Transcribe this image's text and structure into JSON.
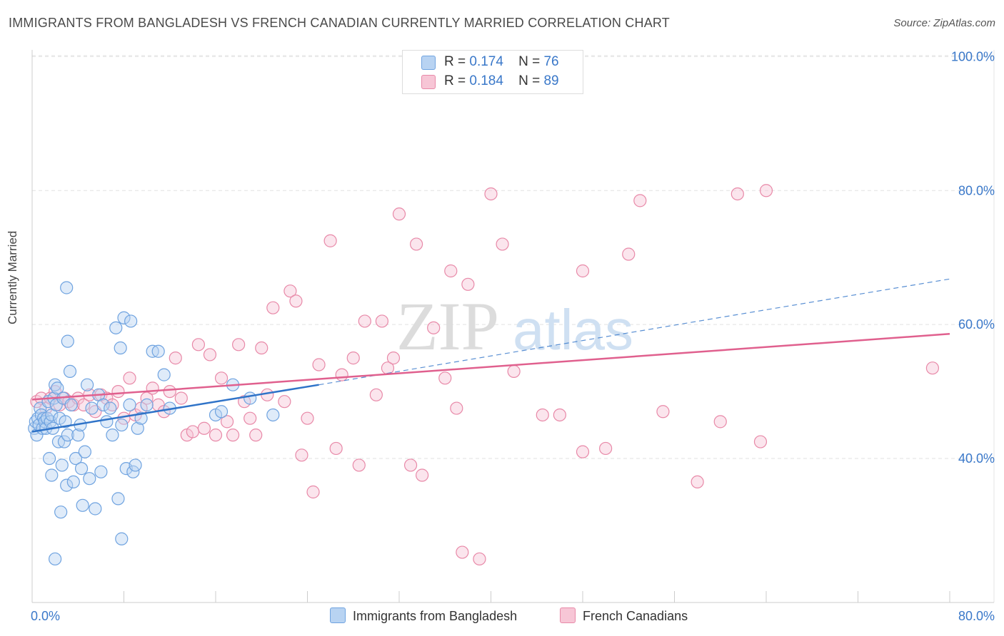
{
  "title": "IMMIGRANTS FROM BANGLADESH VS FRENCH CANADIAN CURRENTLY MARRIED CORRELATION CHART",
  "source_prefix": "Source: ",
  "source_site": "ZipAtlas.com",
  "watermark": {
    "zip": "ZIP",
    "atlas": "atlas"
  },
  "colors": {
    "blue": "#6fa3e0",
    "blue_fill": "#b8d3f2",
    "blue_line": "#2f73c8",
    "pink": "#e889a8",
    "pink_fill": "#f7c6d6",
    "pink_line": "#e0608e",
    "axis_text": "#3a78c9",
    "grid": "#e2e2e2"
  },
  "legend": {
    "r_label": "R =",
    "n_label": "N =",
    "series": [
      {
        "r": "0.174",
        "n": "76"
      },
      {
        "r": "0.184",
        "n": "89"
      }
    ]
  },
  "chart_data": {
    "type": "scatter",
    "title": "IMMIGRANTS FROM BANGLADESH VS FRENCH CANADIAN CURRENTLY MARRIED CORRELATION CHART",
    "xlabel": "",
    "ylabel": "Currently Married",
    "xlim": [
      0,
      80
    ],
    "ylim": [
      18.5,
      101
    ],
    "x_tick_labels": [
      "0.0%",
      "80.0%"
    ],
    "y_ticks": [
      40,
      60,
      80,
      100
    ],
    "y_tick_labels": [
      "40.0%",
      "60.0%",
      "80.0%",
      "100.0%"
    ],
    "legend_position": "top-center",
    "series": [
      {
        "name": "Immigrants from Bangladesh",
        "color": "blue",
        "trend": {
          "x0": 0,
          "y0": 44.0,
          "x1": 25,
          "y1": 51.0,
          "dashed_to_x": 80,
          "dashed_to_y": 66.8
        },
        "points": [
          [
            0.2,
            44.5
          ],
          [
            0.3,
            45.5
          ],
          [
            0.4,
            43.5
          ],
          [
            0.5,
            46.0
          ],
          [
            0.6,
            45.0
          ],
          [
            0.7,
            47.5
          ],
          [
            0.8,
            46.5
          ],
          [
            0.9,
            44.5
          ],
          [
            1.0,
            46.0
          ],
          [
            1.1,
            45.5
          ],
          [
            1.2,
            44.5
          ],
          [
            1.3,
            46.0
          ],
          [
            1.4,
            48.5
          ],
          [
            1.5,
            40.0
          ],
          [
            1.6,
            45.5
          ],
          [
            1.7,
            46.5
          ],
          [
            1.8,
            44.5
          ],
          [
            1.9,
            49.0
          ],
          [
            2.0,
            51.0
          ],
          [
            2.1,
            48.0
          ],
          [
            2.2,
            50.5
          ],
          [
            2.3,
            42.5
          ],
          [
            2.4,
            46.0
          ],
          [
            2.5,
            32.0
          ],
          [
            2.6,
            39.0
          ],
          [
            2.7,
            49.0
          ],
          [
            2.8,
            42.5
          ],
          [
            2.9,
            45.5
          ],
          [
            3.0,
            36.0
          ],
          [
            3.1,
            43.5
          ],
          [
            3.3,
            53.0
          ],
          [
            3.4,
            48.0
          ],
          [
            3.6,
            36.5
          ],
          [
            3.8,
            40.0
          ],
          [
            4.0,
            43.5
          ],
          [
            4.2,
            45.0
          ],
          [
            4.4,
            33.0
          ],
          [
            4.6,
            41.0
          ],
          [
            4.8,
            51.0
          ],
          [
            5.0,
            37.0
          ],
          [
            5.2,
            47.5
          ],
          [
            5.5,
            32.5
          ],
          [
            5.8,
            49.5
          ],
          [
            6.0,
            38.0
          ],
          [
            6.2,
            48.0
          ],
          [
            6.5,
            45.5
          ],
          [
            6.8,
            47.5
          ],
          [
            7.0,
            43.5
          ],
          [
            7.3,
            59.5
          ],
          [
            7.5,
            34.0
          ],
          [
            7.8,
            45.0
          ],
          [
            8.0,
            61.0
          ],
          [
            8.2,
            38.5
          ],
          [
            8.5,
            48.0
          ],
          [
            8.8,
            38.0
          ],
          [
            9.0,
            39.0
          ],
          [
            9.2,
            44.5
          ],
          [
            9.5,
            46.0
          ],
          [
            10.0,
            48.0
          ],
          [
            10.5,
            56.0
          ],
          [
            11.0,
            56.0
          ],
          [
            11.5,
            52.5
          ],
          [
            12.0,
            47.5
          ],
          [
            16.0,
            46.5
          ],
          [
            16.5,
            47.0
          ],
          [
            17.5,
            51.0
          ],
          [
            19.0,
            49.0
          ],
          [
            21.0,
            46.5
          ],
          [
            2.0,
            25.0
          ],
          [
            3.0,
            65.5
          ],
          [
            3.1,
            57.5
          ],
          [
            7.7,
            56.5
          ],
          [
            8.6,
            60.5
          ],
          [
            1.7,
            37.5
          ],
          [
            4.3,
            38.5
          ],
          [
            7.8,
            28.0
          ]
        ]
      },
      {
        "name": "French Canadians",
        "color": "pink",
        "trend": {
          "x0": 0,
          "y0": 48.8,
          "x1": 80,
          "y1": 58.6
        },
        "points": [
          [
            0.4,
            48.5
          ],
          [
            0.8,
            49.0
          ],
          [
            1.2,
            47.5
          ],
          [
            1.6,
            49.0
          ],
          [
            2.0,
            50.0
          ],
          [
            2.4,
            48.0
          ],
          [
            2.8,
            49.0
          ],
          [
            3.2,
            48.5
          ],
          [
            3.6,
            48.0
          ],
          [
            4.0,
            49.0
          ],
          [
            4.5,
            48.0
          ],
          [
            5.0,
            49.5
          ],
          [
            5.5,
            47.0
          ],
          [
            6.0,
            49.5
          ],
          [
            6.5,
            49.0
          ],
          [
            7.0,
            48.0
          ],
          [
            7.5,
            50.0
          ],
          [
            8.0,
            46.0
          ],
          [
            8.5,
            52.0
          ],
          [
            9.0,
            46.5
          ],
          [
            9.5,
            47.5
          ],
          [
            10.0,
            49.0
          ],
          [
            10.5,
            50.5
          ],
          [
            11.0,
            48.0
          ],
          [
            11.5,
            47.0
          ],
          [
            12.0,
            50.0
          ],
          [
            12.5,
            55.0
          ],
          [
            13.0,
            49.0
          ],
          [
            13.5,
            43.5
          ],
          [
            14.0,
            44.0
          ],
          [
            14.5,
            57.0
          ],
          [
            15.0,
            44.5
          ],
          [
            15.5,
            55.5
          ],
          [
            16.0,
            43.5
          ],
          [
            16.5,
            52.0
          ],
          [
            17.0,
            45.5
          ],
          [
            17.5,
            43.5
          ],
          [
            18.0,
            57.0
          ],
          [
            18.5,
            48.5
          ],
          [
            19.0,
            46.0
          ],
          [
            19.5,
            43.5
          ],
          [
            20.0,
            56.5
          ],
          [
            20.5,
            49.5
          ],
          [
            21.0,
            62.5
          ],
          [
            22.0,
            48.5
          ],
          [
            22.5,
            65.0
          ],
          [
            23.0,
            63.5
          ],
          [
            23.5,
            40.5
          ],
          [
            24.0,
            46.0
          ],
          [
            24.5,
            35.0
          ],
          [
            25.0,
            54.0
          ],
          [
            26.0,
            72.5
          ],
          [
            26.5,
            41.5
          ],
          [
            27.0,
            52.5
          ],
          [
            28.0,
            55.0
          ],
          [
            28.5,
            39.0
          ],
          [
            29.0,
            60.5
          ],
          [
            30.0,
            49.5
          ],
          [
            30.5,
            60.5
          ],
          [
            31.0,
            53.5
          ],
          [
            31.5,
            55.0
          ],
          [
            32.0,
            76.5
          ],
          [
            33.0,
            39.0
          ],
          [
            33.5,
            72.0
          ],
          [
            34.0,
            37.5
          ],
          [
            35.0,
            59.5
          ],
          [
            36.0,
            52.0
          ],
          [
            36.5,
            68.0
          ],
          [
            37.0,
            47.5
          ],
          [
            38.0,
            66.0
          ],
          [
            37.5,
            26.0
          ],
          [
            39.0,
            25.0
          ],
          [
            40.0,
            79.5
          ],
          [
            41.0,
            72.0
          ],
          [
            42.0,
            53.0
          ],
          [
            44.5,
            46.5
          ],
          [
            46.0,
            46.5
          ],
          [
            48.0,
            68.0
          ],
          [
            48.0,
            41.0
          ],
          [
            50.0,
            41.5
          ],
          [
            52.0,
            70.5
          ],
          [
            53.0,
            78.5
          ],
          [
            55.0,
            47.0
          ],
          [
            58.0,
            36.5
          ],
          [
            60.0,
            45.5
          ],
          [
            61.5,
            79.5
          ],
          [
            64.0,
            80.0
          ],
          [
            63.5,
            42.5
          ],
          [
            78.5,
            53.5
          ]
        ]
      }
    ]
  },
  "bottom_legend": [
    "Immigrants from Bangladesh",
    "French Canadians"
  ]
}
